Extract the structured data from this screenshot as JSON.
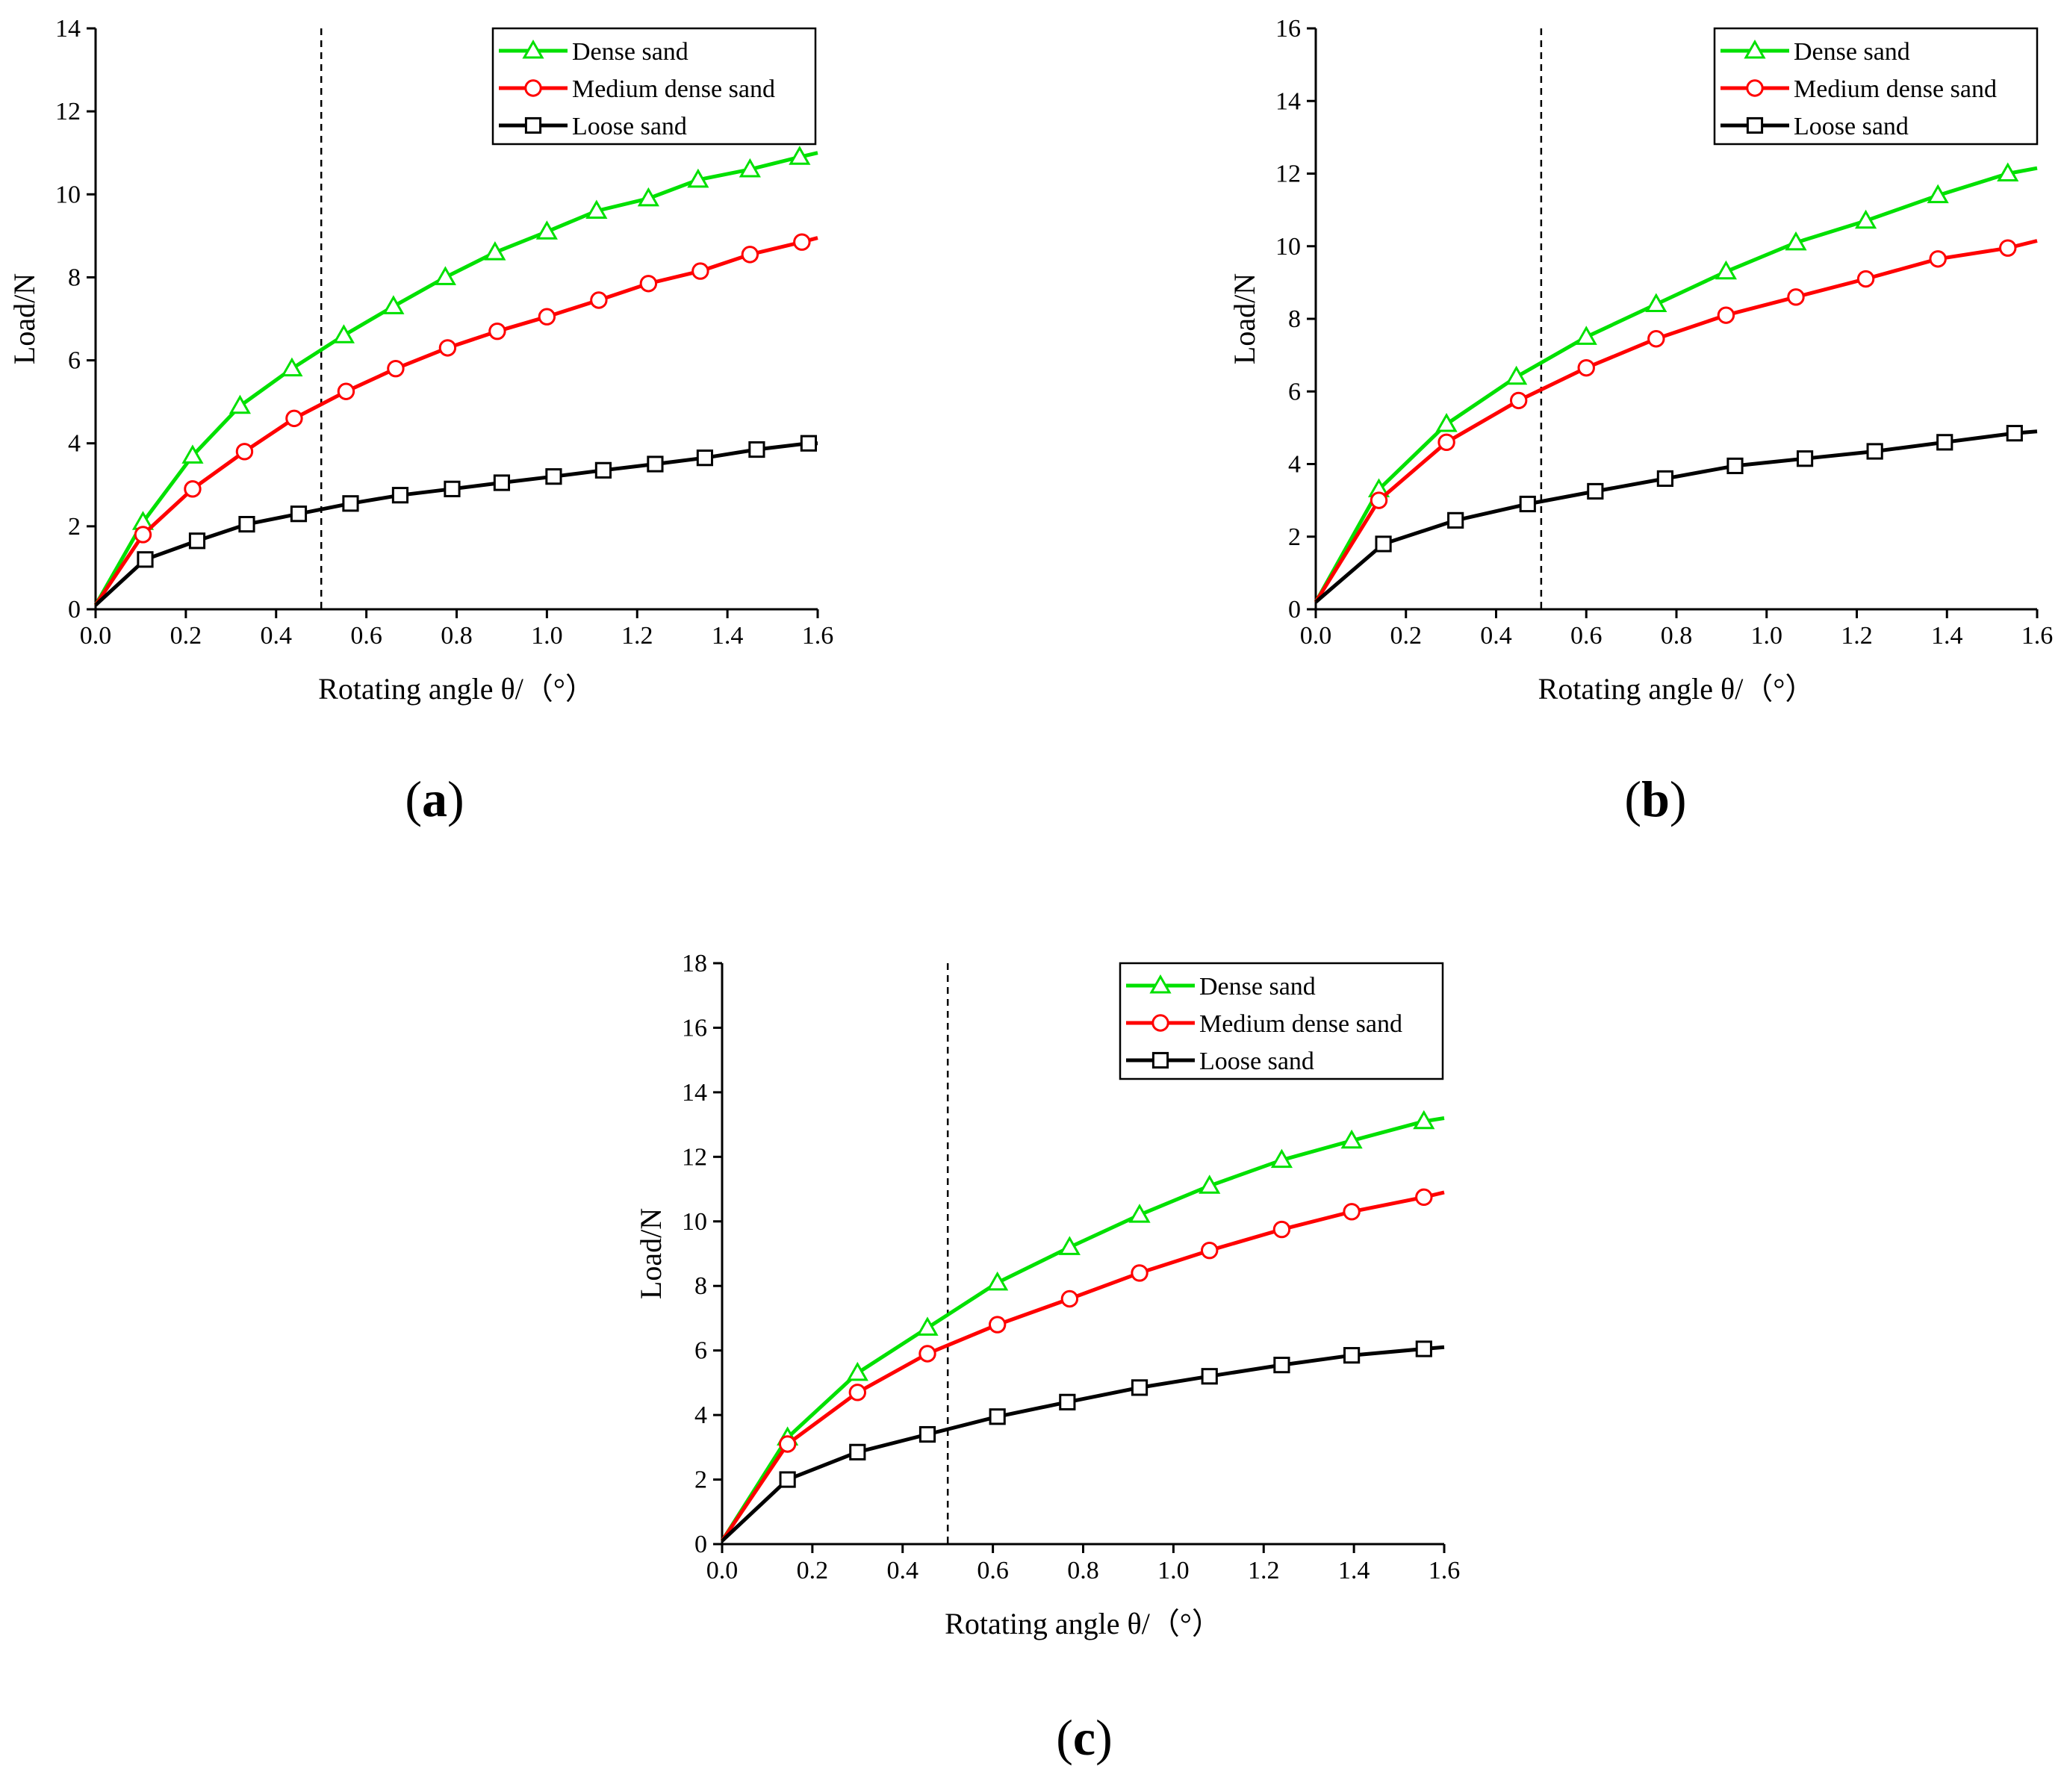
{
  "chart_data": [
    {
      "type": "line",
      "panel_label": "a",
      "xlabel": "Rotating angle θ/（°）",
      "ylabel": "Load/N",
      "xlim": [
        0,
        1.6
      ],
      "ylim": [
        0,
        14
      ],
      "xticks": [
        "0.0",
        "0.2",
        "0.4",
        "0.6",
        "0.8",
        "1.0",
        "1.2",
        "1.4",
        "1.6"
      ],
      "yticks": [
        "0",
        "2",
        "4",
        "6",
        "8",
        "10",
        "12",
        "14"
      ],
      "reference_line_x": 0.5,
      "legend_position": "top-right",
      "series": [
        {
          "name": "Dense sand",
          "color": "#00e000",
          "marker": "triangle",
          "x": [
            0,
            0.105,
            0.215,
            0.32,
            0.435,
            0.55,
            0.66,
            0.775,
            0.885,
            1.0,
            1.11,
            1.225,
            1.335,
            1.45,
            1.56,
            1.6
          ],
          "y": [
            0.1,
            2.1,
            3.7,
            4.9,
            5.8,
            6.6,
            7.3,
            8.0,
            8.6,
            9.1,
            9.6,
            9.9,
            10.35,
            10.6,
            10.9,
            11.0
          ]
        },
        {
          "name": "Medium dense sand",
          "color": "#ff0000",
          "marker": "circle",
          "x": [
            0,
            0.105,
            0.215,
            0.33,
            0.44,
            0.555,
            0.665,
            0.78,
            0.89,
            1.0,
            1.115,
            1.225,
            1.34,
            1.45,
            1.565,
            1.6
          ],
          "y": [
            0.1,
            1.8,
            2.9,
            3.8,
            4.6,
            5.25,
            5.8,
            6.3,
            6.7,
            7.05,
            7.45,
            7.85,
            8.15,
            8.55,
            8.85,
            8.95
          ]
        },
        {
          "name": "Loose sand",
          "color": "#000000",
          "marker": "square",
          "x": [
            0,
            0.11,
            0.225,
            0.335,
            0.45,
            0.565,
            0.675,
            0.79,
            0.9,
            1.015,
            1.125,
            1.24,
            1.35,
            1.465,
            1.58,
            1.6
          ],
          "y": [
            0.1,
            1.2,
            1.65,
            2.05,
            2.3,
            2.55,
            2.75,
            2.9,
            3.05,
            3.2,
            3.35,
            3.5,
            3.65,
            3.85,
            4.0,
            4.0
          ]
        }
      ]
    },
    {
      "type": "line",
      "panel_label": "b",
      "xlabel": "Rotating angle θ/（°）",
      "ylabel": "Load/N",
      "xlim": [
        0,
        1.6
      ],
      "ylim": [
        0,
        16
      ],
      "xticks": [
        "0.0",
        "0.2",
        "0.4",
        "0.6",
        "0.8",
        "1.0",
        "1.2",
        "1.4",
        "1.6"
      ],
      "yticks": [
        "0",
        "2",
        "4",
        "6",
        "8",
        "10",
        "12",
        "14",
        "16"
      ],
      "reference_line_x": 0.5,
      "legend_position": "top-right",
      "series": [
        {
          "name": "Dense sand",
          "color": "#00e000",
          "marker": "triangle",
          "x": [
            0,
            0.14,
            0.29,
            0.445,
            0.6,
            0.755,
            0.91,
            1.065,
            1.22,
            1.38,
            1.535,
            1.6
          ],
          "y": [
            0.2,
            3.3,
            5.1,
            6.4,
            7.5,
            8.4,
            9.3,
            10.1,
            10.7,
            11.4,
            12.0,
            12.15
          ]
        },
        {
          "name": "Medium dense sand",
          "color": "#ff0000",
          "marker": "circle",
          "x": [
            0,
            0.14,
            0.29,
            0.45,
            0.6,
            0.755,
            0.91,
            1.065,
            1.22,
            1.38,
            1.535,
            1.6
          ],
          "y": [
            0.2,
            3.0,
            4.6,
            5.75,
            6.65,
            7.45,
            8.1,
            8.6,
            9.1,
            9.65,
            9.95,
            10.15
          ]
        },
        {
          "name": "Loose sand",
          "color": "#000000",
          "marker": "square",
          "x": [
            0,
            0.15,
            0.31,
            0.47,
            0.62,
            0.775,
            0.93,
            1.085,
            1.24,
            1.395,
            1.55,
            1.6
          ],
          "y": [
            0.2,
            1.8,
            2.45,
            2.9,
            3.25,
            3.6,
            3.95,
            4.15,
            4.35,
            4.6,
            4.85,
            4.9
          ]
        }
      ]
    },
    {
      "type": "line",
      "panel_label": "c",
      "xlabel": "Rotating angle θ/（°）",
      "ylabel": "Load/N",
      "xlim": [
        0,
        1.6
      ],
      "ylim": [
        0,
        18
      ],
      "xticks": [
        "0.0",
        "0.2",
        "0.4",
        "0.6",
        "0.8",
        "1.0",
        "1.2",
        "1.4",
        "1.6"
      ],
      "yticks": [
        "0",
        "2",
        "4",
        "6",
        "8",
        "10",
        "12",
        "14",
        "16",
        "18"
      ],
      "reference_line_x": 0.5,
      "legend_position": "top-right",
      "series": [
        {
          "name": "Dense sand",
          "color": "#00e000",
          "marker": "triangle",
          "x": [
            0,
            0.145,
            0.3,
            0.455,
            0.61,
            0.77,
            0.925,
            1.08,
            1.24,
            1.395,
            1.555,
            1.6
          ],
          "y": [
            0.1,
            3.3,
            5.3,
            6.7,
            8.1,
            9.2,
            10.2,
            11.1,
            11.9,
            12.5,
            13.1,
            13.2
          ]
        },
        {
          "name": "Medium dense sand",
          "color": "#ff0000",
          "marker": "circle",
          "x": [
            0,
            0.145,
            0.3,
            0.455,
            0.61,
            0.77,
            0.925,
            1.08,
            1.24,
            1.395,
            1.555,
            1.6
          ],
          "y": [
            0.1,
            3.1,
            4.7,
            5.9,
            6.8,
            7.6,
            8.4,
            9.1,
            9.75,
            10.3,
            10.75,
            10.9
          ]
        },
        {
          "name": "Loose sand",
          "color": "#000000",
          "marker": "square",
          "x": [
            0,
            0.145,
            0.3,
            0.455,
            0.61,
            0.765,
            0.925,
            1.08,
            1.24,
            1.395,
            1.555,
            1.6
          ],
          "y": [
            0.1,
            2.0,
            2.85,
            3.4,
            3.95,
            4.4,
            4.85,
            5.2,
            5.55,
            5.85,
            6.05,
            6.1
          ]
        }
      ]
    }
  ]
}
